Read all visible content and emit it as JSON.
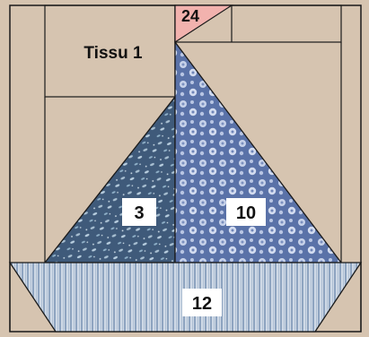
{
  "labels": {
    "fabric_1": "Tissu 1",
    "piece_24": "24",
    "piece_3": "3",
    "piece_10": "10",
    "piece_12": "12"
  },
  "colors": {
    "background_fabric": "#d6c4b0",
    "sail_left_fabric": "#3f5a7a",
    "sail_left_print": "#a9c0d2",
    "sail_right_fabric": "#5a72a8",
    "sail_right_print": "#c7d2ea",
    "hull_stripe_light": "#cfd9e6",
    "hull_stripe_dark": "#8ea4c0",
    "flag_fabric": "#f2b2ae",
    "label_box": "#ffffff",
    "seam_line": "#1a1a1a"
  }
}
